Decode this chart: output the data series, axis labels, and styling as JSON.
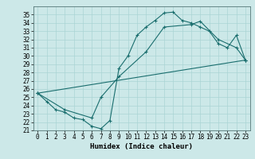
{
  "xlabel": "Humidex (Indice chaleur)",
  "bg_color": "#cce8e8",
  "grid_color": "#aad4d4",
  "line_color": "#1a6e6e",
  "xlim": [
    -0.5,
    23.5
  ],
  "ylim": [
    21,
    36
  ],
  "yticks": [
    21,
    22,
    23,
    24,
    25,
    26,
    27,
    28,
    29,
    30,
    31,
    32,
    33,
    34,
    35
  ],
  "xticks": [
    0,
    1,
    2,
    3,
    4,
    5,
    6,
    7,
    8,
    9,
    10,
    11,
    12,
    13,
    14,
    15,
    16,
    17,
    18,
    19,
    20,
    21,
    22,
    23
  ],
  "line1_x": [
    0,
    1,
    2,
    3,
    4,
    5,
    6,
    7,
    8,
    9,
    10,
    11,
    12,
    13,
    14,
    15,
    16,
    17,
    18,
    19,
    20,
    21,
    22,
    23
  ],
  "line1_y": [
    25.5,
    24.5,
    23.5,
    23.2,
    22.5,
    22.3,
    21.5,
    21.2,
    22.2,
    28.5,
    30.0,
    32.5,
    33.5,
    34.3,
    35.2,
    35.3,
    34.3,
    34.0,
    33.5,
    33.0,
    31.5,
    31.0,
    32.5,
    29.5
  ],
  "line2_x": [
    0,
    3,
    6,
    7,
    9,
    12,
    14,
    17,
    18,
    20,
    22,
    23
  ],
  "line2_y": [
    25.5,
    23.5,
    22.5,
    25.0,
    27.5,
    30.5,
    33.5,
    33.8,
    34.2,
    32.0,
    31.0,
    29.5
  ],
  "line3_x": [
    0,
    23
  ],
  "line3_y": [
    25.5,
    29.5
  ]
}
